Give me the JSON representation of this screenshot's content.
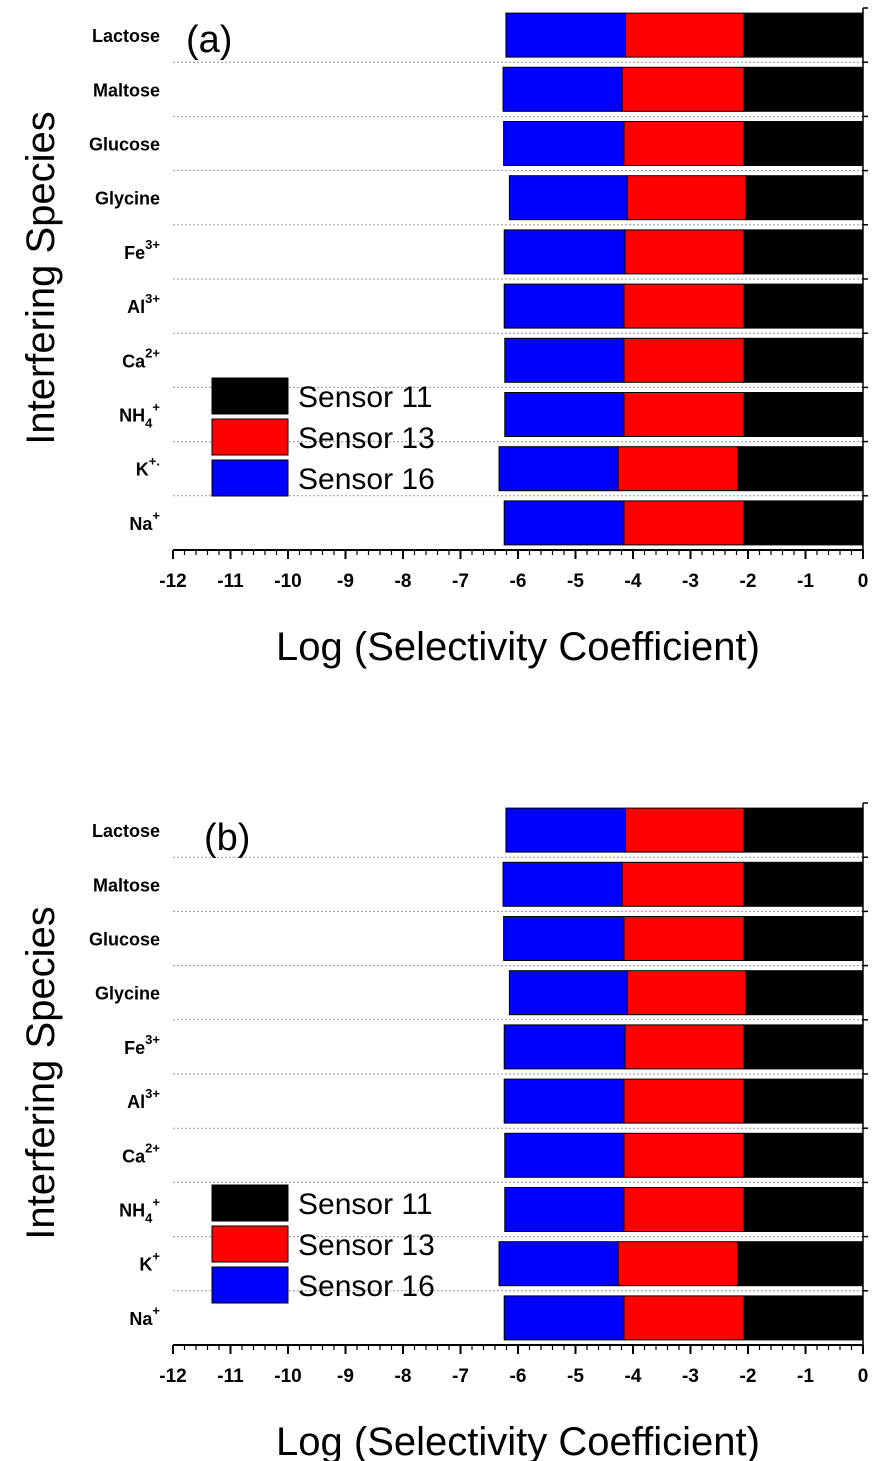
{
  "chart_data": [
    {
      "type": "bar",
      "orientation": "horizontal",
      "stacked": true,
      "panel_label": "(a)",
      "xlabel": "Log (Selectivity Coefficient)",
      "ylabel": "Interfering Species",
      "xlim": [
        -12,
        0
      ],
      "x_ticks": [
        "-12",
        "-11",
        "-10",
        "-9",
        "-8",
        "-7",
        "-6",
        "-5",
        "-4",
        "-3",
        "-2",
        "-1",
        "0"
      ],
      "categories": [
        {
          "base": "Lactose",
          "sub": "",
          "sup": ""
        },
        {
          "base": "Maltose",
          "sub": "",
          "sup": ""
        },
        {
          "base": "Glucose",
          "sub": "",
          "sup": ""
        },
        {
          "base": "Glycine",
          "sub": "",
          "sup": ""
        },
        {
          "base": "Fe",
          "sub": "",
          "sup": "3+"
        },
        {
          "base": "Al",
          "sub": "",
          "sup": "3+"
        },
        {
          "base": "Ca",
          "sub": "",
          "sup": "2+"
        },
        {
          "base": "NH",
          "sub": "4",
          "sup": "+"
        },
        {
          "base": "K",
          "sub": "",
          "sup": "+."
        },
        {
          "base": "Na",
          "sub": "",
          "sup": "+"
        }
      ],
      "series": [
        {
          "name": "Sensor 11",
          "color": "#000000",
          "values": [
            -2.07,
            -2.07,
            -2.07,
            -2.04,
            -2.07,
            -2.07,
            -2.07,
            -2.07,
            -2.18,
            -2.07
          ]
        },
        {
          "name": "Sensor 13",
          "color": "#ff0000",
          "values": [
            -2.06,
            -2.12,
            -2.09,
            -2.06,
            -2.07,
            -2.09,
            -2.09,
            -2.09,
            -2.08,
            -2.09
          ]
        },
        {
          "name": "Sensor 16",
          "color": "#0000ff",
          "values": [
            -2.08,
            -2.07,
            -2.09,
            -2.05,
            -2.1,
            -2.08,
            -2.07,
            -2.07,
            -2.07,
            -2.08
          ]
        }
      ],
      "legend": {
        "placement": "lower-left",
        "order": [
          "Sensor 11",
          "Sensor 13",
          "Sensor 16"
        ]
      },
      "grid": "dotted horizontal separators"
    },
    {
      "type": "bar",
      "orientation": "horizontal",
      "stacked": true,
      "panel_label": "(b)",
      "xlabel": "Log (Selectivity Coefficient)",
      "ylabel": "Interfering Species",
      "xlim": [
        -12,
        0
      ],
      "x_ticks": [
        "-12",
        "-11",
        "-10",
        "-9",
        "-8",
        "-7",
        "-6",
        "-5",
        "-4",
        "-3",
        "-2",
        "-1",
        "0"
      ],
      "categories": [
        {
          "base": "Lactose",
          "sub": "",
          "sup": ""
        },
        {
          "base": "Maltose",
          "sub": "",
          "sup": ""
        },
        {
          "base": "Glucose",
          "sub": "",
          "sup": ""
        },
        {
          "base": "Glycine",
          "sub": "",
          "sup": ""
        },
        {
          "base": "Fe",
          "sub": "",
          "sup": "3+"
        },
        {
          "base": "Al",
          "sub": "",
          "sup": "3+"
        },
        {
          "base": "Ca",
          "sub": "",
          "sup": "2+"
        },
        {
          "base": "NH",
          "sub": "4",
          "sup": "+"
        },
        {
          "base": "K",
          "sub": "",
          "sup": "+"
        },
        {
          "base": "Na",
          "sub": "",
          "sup": "+"
        }
      ],
      "series": [
        {
          "name": "Sensor 11",
          "color": "#000000",
          "values": [
            -2.07,
            -2.07,
            -2.07,
            -2.04,
            -2.07,
            -2.07,
            -2.07,
            -2.07,
            -2.18,
            -2.07
          ]
        },
        {
          "name": "Sensor 13",
          "color": "#ff0000",
          "values": [
            -2.06,
            -2.12,
            -2.09,
            -2.06,
            -2.07,
            -2.09,
            -2.09,
            -2.09,
            -2.08,
            -2.09
          ]
        },
        {
          "name": "Sensor 16",
          "color": "#0000ff",
          "values": [
            -2.08,
            -2.07,
            -2.09,
            -2.05,
            -2.1,
            -2.08,
            -2.07,
            -2.07,
            -2.07,
            -2.08
          ]
        }
      ],
      "legend": {
        "placement": "lower-left",
        "order": [
          "Sensor 11",
          "Sensor 13",
          "Sensor 16"
        ]
      },
      "grid": "dotted horizontal separators"
    }
  ]
}
